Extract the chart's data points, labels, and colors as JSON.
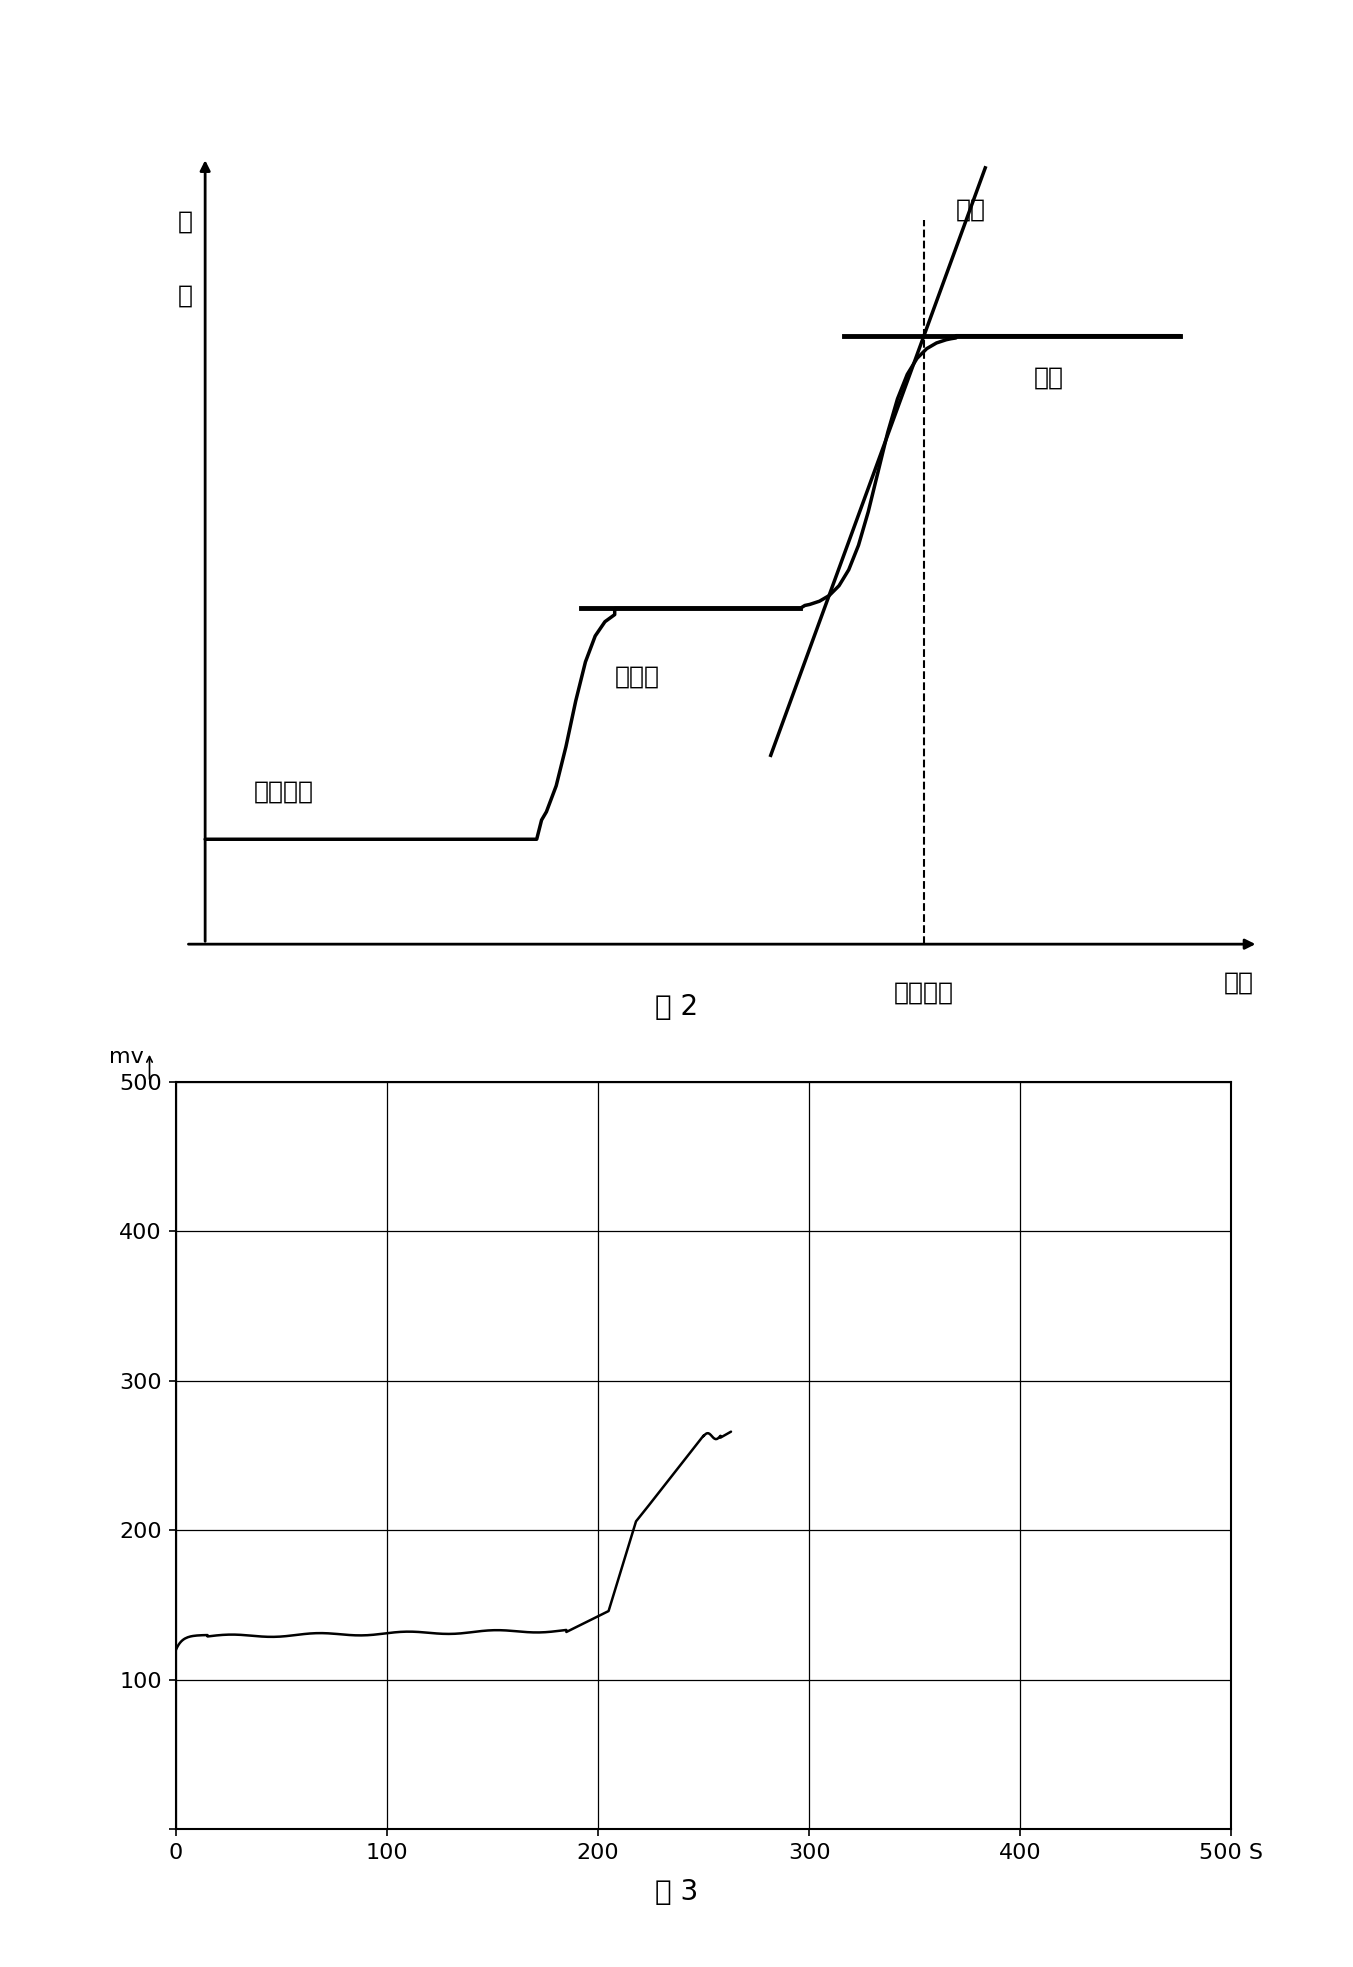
{
  "fig2": {
    "title": "图 2",
    "ylabel_line1": "电",
    "ylabel_line2": "位",
    "xlabel": "时间",
    "curve_color": "black",
    "line_width": 2.5,
    "annotation_fontsize": 18,
    "labels": {
      "tangent": "切线",
      "alloy": "合金层",
      "coating": "镇层金属",
      "base": "基体",
      "dissolve": "溶解终点"
    }
  },
  "fig3": {
    "title": "图 3",
    "ylabel": "mv",
    "xlabel_unit": "S",
    "ylim": [
      0,
      500
    ],
    "xlim": [
      0,
      500
    ],
    "yticks": [
      0,
      100,
      200,
      300,
      400,
      500
    ],
    "xticks": [
      0,
      100,
      200,
      300,
      400,
      500
    ],
    "grid_color": "black",
    "curve_color": "black",
    "line_width": 1.8,
    "tick_fontsize": 16
  },
  "bg_color": "#ffffff",
  "text_color": "#000000"
}
